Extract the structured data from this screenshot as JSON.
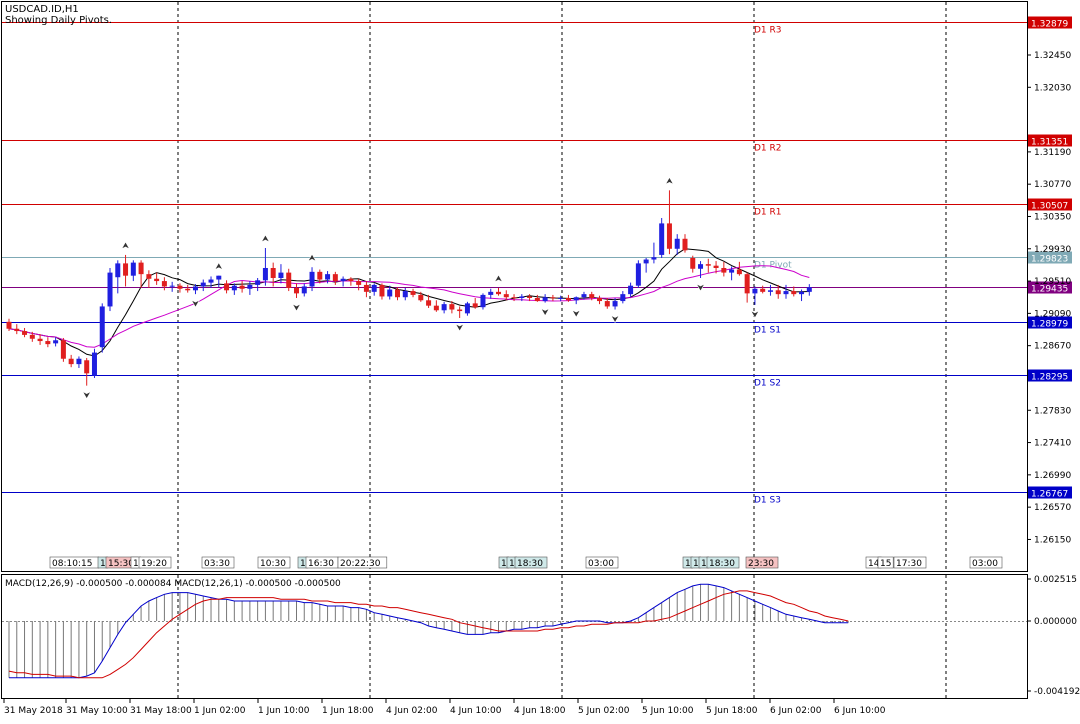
{
  "header": {
    "symbol": "USDCAD.ID,H1",
    "subtitle": "Showing Daily Pivots."
  },
  "colors": {
    "bull": "#1f1fe0",
    "bear": "#e01f1f",
    "pivot": "#7fa9b5",
    "resistance": "#d00000",
    "support": "#0000c8",
    "ma_fast": "#000000",
    "ma_slow": "#cc00cc",
    "macd_line": "#0000cc",
    "signal_line": "#d00000"
  },
  "chart_data": [
    {
      "type": "candlestick",
      "panel": "price",
      "ylim": [
        1.259,
        1.3301
      ],
      "y_ticks": [
        "1.32450",
        "1.32030",
        "1.31190",
        "1.30770",
        "1.30350",
        "1.29930",
        "1.29510",
        "1.29090",
        "1.28670",
        "1.27830",
        "1.27410",
        "1.26990",
        "1.26570",
        "1.26150"
      ],
      "x_labels": [
        "31 May 2018",
        "31 May 10:00",
        "31 May 18:00",
        "1 Jun 02:00",
        "1 Jun 10:00",
        "1 Jun 18:00",
        "4 Jun 02:00",
        "4 Jun 10:00",
        "4 Jun 18:00",
        "5 Jun 02:00",
        "5 Jun 10:00",
        "5 Jun 18:00",
        "6 Jun 02:00",
        "6 Jun 10:00"
      ],
      "pivot_levels": [
        {
          "name": "D1 R3",
          "value": 1.32879,
          "label": "1.32879",
          "kind": "resistance"
        },
        {
          "name": "D1 R2",
          "value": 1.31351,
          "label": "1.31351",
          "kind": "resistance"
        },
        {
          "name": "D1 R1",
          "value": 1.30507,
          "label": "1.30507",
          "kind": "resistance"
        },
        {
          "name": "D1 Pivot",
          "value": 1.29823,
          "label": "1.29823",
          "kind": "pivot"
        },
        {
          "name": "D1 S1",
          "value": 1.28979,
          "label": "1.28979",
          "kind": "support"
        },
        {
          "name": "D1 S2",
          "value": 1.28295,
          "label": "1.28295",
          "kind": "support"
        },
        {
          "name": "D1 S3",
          "value": 1.26767,
          "label": "1.26767",
          "kind": "support"
        }
      ],
      "current_price": {
        "value": 1.29435,
        "label": "1.29435"
      },
      "session_labels": [
        "08:10:15",
        "1",
        "15:30",
        "1",
        "19:20",
        "03:30",
        "10:30",
        "1",
        "16:30",
        "20:22:30",
        "1",
        "1",
        "18:30",
        "03:00",
        "1",
        "1",
        "1",
        "18:30",
        "23:30",
        "14",
        "15",
        "17:30",
        "03:00"
      ],
      "candles": [
        [
          1.2898,
          1.2902,
          1.2886,
          1.2889
        ],
        [
          1.2889,
          1.2895,
          1.2882,
          1.2886
        ],
        [
          1.2886,
          1.289,
          1.2878,
          1.2881
        ],
        [
          1.2881,
          1.2885,
          1.2872,
          1.2876
        ],
        [
          1.2876,
          1.2882,
          1.2868,
          1.2873
        ],
        [
          1.2873,
          1.2878,
          1.2865,
          1.2869
        ],
        [
          1.287,
          1.2878,
          1.2866,
          1.2874
        ],
        [
          1.2874,
          1.2877,
          1.2846,
          1.285
        ],
        [
          1.285,
          1.2855,
          1.2839,
          1.2843
        ],
        [
          1.2843,
          1.2853,
          1.2838,
          1.285
        ],
        [
          1.2848,
          1.2851,
          1.2815,
          1.2831
        ],
        [
          1.2828,
          1.2863,
          1.2825,
          1.2858
        ],
        [
          1.2865,
          1.2922,
          1.2858,
          1.2918
        ],
        [
          1.2918,
          1.2968,
          1.2912,
          1.2962
        ],
        [
          1.2956,
          1.2978,
          1.2935,
          1.2974
        ],
        [
          1.2974,
          1.2985,
          1.2944,
          1.2958
        ],
        [
          1.2958,
          1.2978,
          1.2951,
          1.2975
        ],
        [
          1.2975,
          1.2978,
          1.2942,
          1.296
        ],
        [
          1.296,
          1.2965,
          1.2942,
          1.2954
        ],
        [
          1.2954,
          1.2962,
          1.2946,
          1.2951
        ],
        [
          1.2951,
          1.2956,
          1.2939,
          1.2944
        ],
        [
          1.2944,
          1.295,
          1.2937,
          1.2945
        ],
        [
          1.2945,
          1.2948,
          1.2936,
          1.2941
        ],
        [
          1.2941,
          1.2946,
          1.2936,
          1.2939
        ],
        [
          1.2939,
          1.2947,
          1.2934,
          1.2944
        ],
        [
          1.2944,
          1.2953,
          1.2938,
          1.2949
        ],
        [
          1.2949,
          1.2957,
          1.2942,
          1.2953
        ],
        [
          1.2953,
          1.2958,
          1.2943,
          1.2958
        ],
        [
          1.2948,
          1.2952,
          1.2935,
          1.2939
        ],
        [
          1.2939,
          1.2948,
          1.2933,
          1.2945
        ],
        [
          1.2945,
          1.2951,
          1.2936,
          1.2941
        ],
        [
          1.2941,
          1.2951,
          1.2933,
          1.2946
        ],
        [
          1.2946,
          1.2955,
          1.2938,
          1.2952
        ],
        [
          1.2952,
          1.2994,
          1.2945,
          1.2968
        ],
        [
          1.2968,
          1.2975,
          1.2944,
          1.2955
        ],
        [
          1.2955,
          1.2973,
          1.2948,
          1.2962
        ],
        [
          1.2962,
          1.2967,
          1.2938,
          1.2942
        ],
        [
          1.2942,
          1.2948,
          1.2929,
          1.2935
        ],
        [
          1.2935,
          1.2948,
          1.2931,
          1.2944
        ],
        [
          1.2944,
          1.2969,
          1.2938,
          1.2963
        ],
        [
          1.2963,
          1.2966,
          1.2948,
          1.2953
        ],
        [
          1.2953,
          1.2964,
          1.2948,
          1.296
        ],
        [
          1.296,
          1.2963,
          1.2946,
          1.2951
        ],
        [
          1.2951,
          1.2957,
          1.2944,
          1.2954
        ],
        [
          1.2954,
          1.2956,
          1.2945,
          1.2951
        ],
        [
          1.2951,
          1.2954,
          1.2939,
          1.2946
        ],
        [
          1.2946,
          1.2951,
          1.293,
          1.2937
        ],
        [
          1.2937,
          1.2948,
          1.2932,
          1.2946
        ],
        [
          1.2946,
          1.2948,
          1.2927,
          1.2931
        ],
        [
          1.2931,
          1.2945,
          1.2927,
          1.294
        ],
        [
          1.294,
          1.2943,
          1.2926,
          1.293
        ],
        [
          1.293,
          1.2942,
          1.2926,
          1.2938
        ],
        [
          1.2938,
          1.2941,
          1.293,
          1.2933
        ],
        [
          1.2933,
          1.2937,
          1.2924,
          1.2926
        ],
        [
          1.2926,
          1.2933,
          1.2916,
          1.2919
        ],
        [
          1.2919,
          1.2926,
          1.2911,
          1.2913
        ],
        [
          1.2913,
          1.2924,
          1.2909,
          1.2921
        ],
        [
          1.2921,
          1.2925,
          1.2909,
          1.2914
        ],
        [
          1.2914,
          1.2918,
          1.2903,
          1.2912
        ],
        [
          1.2909,
          1.2924,
          1.2906,
          1.2922
        ],
        [
          1.2922,
          1.2929,
          1.2915,
          1.2917
        ],
        [
          1.2917,
          1.2935,
          1.2914,
          1.2933
        ],
        [
          1.2933,
          1.2941,
          1.2928,
          1.2937
        ],
        [
          1.2937,
          1.2942,
          1.2932,
          1.2934
        ],
        [
          1.2934,
          1.2939,
          1.2926,
          1.293
        ],
        [
          1.293,
          1.2934,
          1.2925,
          1.2929
        ],
        [
          1.2929,
          1.2934,
          1.2925,
          1.2931
        ],
        [
          1.2931,
          1.2934,
          1.2925,
          1.2929
        ],
        [
          1.2929,
          1.2933,
          1.2924,
          1.2925
        ],
        [
          1.2925,
          1.2934,
          1.2923,
          1.293
        ],
        [
          1.293,
          1.2933,
          1.2925,
          1.2929
        ],
        [
          1.2929,
          1.2932,
          1.2925,
          1.2929
        ],
        [
          1.2929,
          1.2933,
          1.2924,
          1.2926
        ],
        [
          1.2926,
          1.2931,
          1.2921,
          1.293
        ],
        [
          1.293,
          1.2937,
          1.2927,
          1.2934
        ],
        [
          1.2934,
          1.2937,
          1.2926,
          1.2929
        ],
        [
          1.2929,
          1.2932,
          1.2921,
          1.2925
        ],
        [
          1.2925,
          1.2929,
          1.2915,
          1.2918
        ],
        [
          1.2918,
          1.2929,
          1.2914,
          1.2925
        ],
        [
          1.2925,
          1.2938,
          1.2922,
          1.2934
        ],
        [
          1.2934,
          1.2949,
          1.293,
          1.2945
        ],
        [
          1.2945,
          1.2978,
          1.2942,
          1.2974
        ],
        [
          1.2974,
          1.2981,
          1.2962,
          1.2979
        ],
        [
          1.2979,
          1.3001,
          1.2974,
          1.2982
        ],
        [
          1.2985,
          1.3033,
          1.2981,
          1.3026
        ],
        [
          1.3026,
          1.3069,
          1.2986,
          1.2993
        ],
        [
          1.2993,
          1.3012,
          1.2985,
          1.3006
        ],
        [
          1.3006,
          1.3012,
          1.2988,
          1.2991
        ],
        [
          1.2981,
          1.2984,
          1.2962,
          1.2967
        ],
        [
          1.2967,
          1.2977,
          1.2955,
          1.2973
        ],
        [
          1.2973,
          1.298,
          1.2962,
          1.2971
        ],
        [
          1.2971,
          1.2977,
          1.2961,
          1.2968
        ],
        [
          1.2968,
          1.2976,
          1.2957,
          1.2962
        ],
        [
          1.2962,
          1.297,
          1.2952,
          1.2966
        ],
        [
          1.2966,
          1.2976,
          1.2958,
          1.296
        ],
        [
          1.296,
          1.2962,
          1.2923,
          1.2935
        ],
        [
          1.2935,
          1.2944,
          1.292,
          1.2941
        ],
        [
          1.2941,
          1.2945,
          1.2935,
          1.2937
        ],
        [
          1.2937,
          1.2946,
          1.2932,
          1.2939
        ],
        [
          1.2939,
          1.2946,
          1.2928,
          1.2934
        ],
        [
          1.2934,
          1.2946,
          1.2928,
          1.2938
        ],
        [
          1.2938,
          1.2944,
          1.2931,
          1.2934
        ],
        [
          1.2934,
          1.294,
          1.2925,
          1.2937
        ],
        [
          1.2937,
          1.2947,
          1.2932,
          1.2943
        ]
      ]
    },
    {
      "type": "histogram_line",
      "panel": "macd",
      "title": "MACD(12,26,9) -0.000500 -0.000084 MACD(12,26,1) -0.000500 -0.000500",
      "ylim": [
        -0.004192,
        0.002515
      ],
      "y_ticks": [
        "0.002515",
        "0.000000",
        "-0.004192"
      ],
      "macd": [
        -0.0034,
        -0.0034,
        -0.0034,
        -0.0034,
        -0.0034,
        -0.0034,
        -0.0034,
        -0.0034,
        -0.0034,
        -0.0034,
        -0.0033,
        -0.0031,
        -0.0024,
        -0.0016,
        -0.0008,
        -0.0001,
        0.0004,
        0.0009,
        0.0012,
        0.0014,
        0.0016,
        0.0017,
        0.0017,
        0.0017,
        0.0016,
        0.0015,
        0.0014,
        0.0013,
        0.0013,
        0.0012,
        0.0012,
        0.0012,
        0.0012,
        0.0012,
        0.0012,
        0.0012,
        0.0012,
        0.0012,
        0.0011,
        0.0011,
        0.001,
        0.0009,
        0.0009,
        0.0009,
        0.0008,
        0.0008,
        0.0007,
        0.0005,
        0.0004,
        0.0003,
        0.0002,
        0.0001,
        0,
        -0.0001,
        -0.0003,
        -0.0004,
        -0.0005,
        -0.0006,
        -0.0007,
        -0.0008,
        -0.0008,
        -0.0008,
        -0.0007,
        -0.0007,
        -0.0006,
        -0.0005,
        -0.0005,
        -0.0004,
        -0.0004,
        -0.0003,
        -0.0003,
        -0.0002,
        -0.0001,
        0,
        0,
        0,
        0,
        -0.0001,
        -0.0001,
        -0.0001,
        0,
        0.0002,
        0.0005,
        0.0008,
        0.0011,
        0.0014,
        0.0017,
        0.0019,
        0.0021,
        0.0022,
        0.0022,
        0.0021,
        0.002,
        0.0018,
        0.0016,
        0.0014,
        0.0012,
        0.001,
        0.0008,
        0.0006,
        0.0004,
        0.0003,
        0.0002,
        0.0001,
        0,
        -0.0001,
        -0.0001,
        -0.0001,
        -0.0001
      ],
      "signal": [
        -0.003,
        -0.0031,
        -0.0031,
        -0.0032,
        -0.0032,
        -0.0032,
        -0.0033,
        -0.0033,
        -0.0033,
        -0.0034,
        -0.0034,
        -0.0034,
        -0.0034,
        -0.0032,
        -0.0029,
        -0.0026,
        -0.0022,
        -0.0017,
        -0.0012,
        -0.0007,
        -0.0003,
        0.0001,
        0.0004,
        0.0007,
        0.001,
        0.0012,
        0.0013,
        0.0013,
        0.0014,
        0.0014,
        0.0014,
        0.0014,
        0.0014,
        0.0014,
        0.0014,
        0.0013,
        0.0013,
        0.0013,
        0.0013,
        0.0012,
        0.0012,
        0.0012,
        0.0011,
        0.0011,
        0.0011,
        0.001,
        0.001,
        0.0009,
        0.0009,
        0.0008,
        0.0008,
        0.0007,
        0.0006,
        0.0005,
        0.0004,
        0.0003,
        0.0002,
        0.0001,
        -0.0001,
        -0.0002,
        -0.0003,
        -0.0004,
        -0.0005,
        -0.0006,
        -0.0006,
        -0.0006,
        -0.0006,
        -0.0006,
        -0.0006,
        -0.0005,
        -0.0005,
        -0.0004,
        -0.0004,
        -0.0003,
        -0.0003,
        -0.0002,
        -0.0002,
        -0.0002,
        -0.0001,
        -0.0001,
        -0.0001,
        -0.0001,
        0,
        0,
        0.0001,
        0.0002,
        0.0004,
        0.0006,
        0.0008,
        0.001,
        0.0012,
        0.0014,
        0.0016,
        0.0017,
        0.0018,
        0.0018,
        0.0017,
        0.0016,
        0.0015,
        0.0013,
        0.0011,
        0.001,
        0.0008,
        0.0006,
        0.0005,
        0.0003,
        0.0002,
        0.0001,
        0
      ]
    }
  ]
}
